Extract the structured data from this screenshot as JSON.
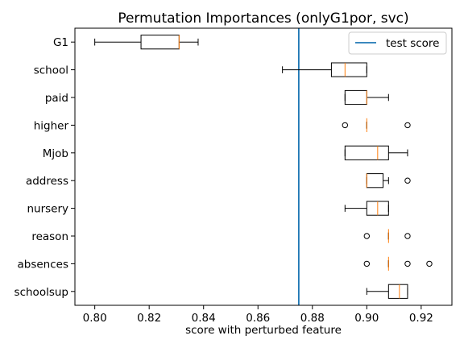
{
  "chart_data": {
    "type": "boxplot",
    "title": "Permutation Importances (onlyG1por, svc)",
    "xlabel": "score with perturbed feature",
    "ylabel": "",
    "xlim": [
      0.7927,
      0.9313
    ],
    "xticks": [
      0.8,
      0.82,
      0.84,
      0.86,
      0.88,
      0.9,
      0.92
    ],
    "xtick_labels": [
      "0.80",
      "0.82",
      "0.84",
      "0.86",
      "0.88",
      "0.90",
      "0.92"
    ],
    "grid": false,
    "legend": {
      "position": "top-right",
      "entries": [
        {
          "label": "test score",
          "color": "#1f77b4"
        }
      ]
    },
    "reference_line": {
      "label": "test score",
      "value": 0.875,
      "color": "#1f77b4"
    },
    "box_color": "#000000",
    "median_color": "#ff7f0e",
    "features": [
      {
        "name": "G1",
        "whislo": 0.8,
        "q1": 0.817,
        "med": 0.831,
        "q3": 0.831,
        "whishi": 0.838,
        "fliers": []
      },
      {
        "name": "school",
        "whislo": 0.869,
        "q1": 0.887,
        "med": 0.892,
        "q3": 0.9,
        "whishi": 0.9,
        "fliers": []
      },
      {
        "name": "paid",
        "whislo": 0.892,
        "q1": 0.892,
        "med": 0.9,
        "q3": 0.9,
        "whishi": 0.908,
        "fliers": []
      },
      {
        "name": "higher",
        "whislo": 0.9,
        "q1": 0.9,
        "med": 0.9,
        "q3": 0.9,
        "whishi": 0.9,
        "fliers": [
          0.892,
          0.915
        ]
      },
      {
        "name": "Mjob",
        "whislo": 0.892,
        "q1": 0.892,
        "med": 0.904,
        "q3": 0.908,
        "whishi": 0.915,
        "fliers": []
      },
      {
        "name": "address",
        "whislo": 0.9,
        "q1": 0.9,
        "med": 0.9,
        "q3": 0.906,
        "whishi": 0.908,
        "fliers": [
          0.915
        ]
      },
      {
        "name": "nursery",
        "whislo": 0.892,
        "q1": 0.9,
        "med": 0.904,
        "q3": 0.908,
        "whishi": 0.908,
        "fliers": []
      },
      {
        "name": "reason",
        "whislo": 0.908,
        "q1": 0.908,
        "med": 0.908,
        "q3": 0.908,
        "whishi": 0.908,
        "fliers": [
          0.9,
          0.915
        ]
      },
      {
        "name": "absences",
        "whislo": 0.908,
        "q1": 0.908,
        "med": 0.908,
        "q3": 0.908,
        "whishi": 0.908,
        "fliers": [
          0.9,
          0.915,
          0.923
        ]
      },
      {
        "name": "schoolsup",
        "whislo": 0.9,
        "q1": 0.908,
        "med": 0.912,
        "q3": 0.915,
        "whishi": 0.915,
        "fliers": []
      }
    ]
  }
}
